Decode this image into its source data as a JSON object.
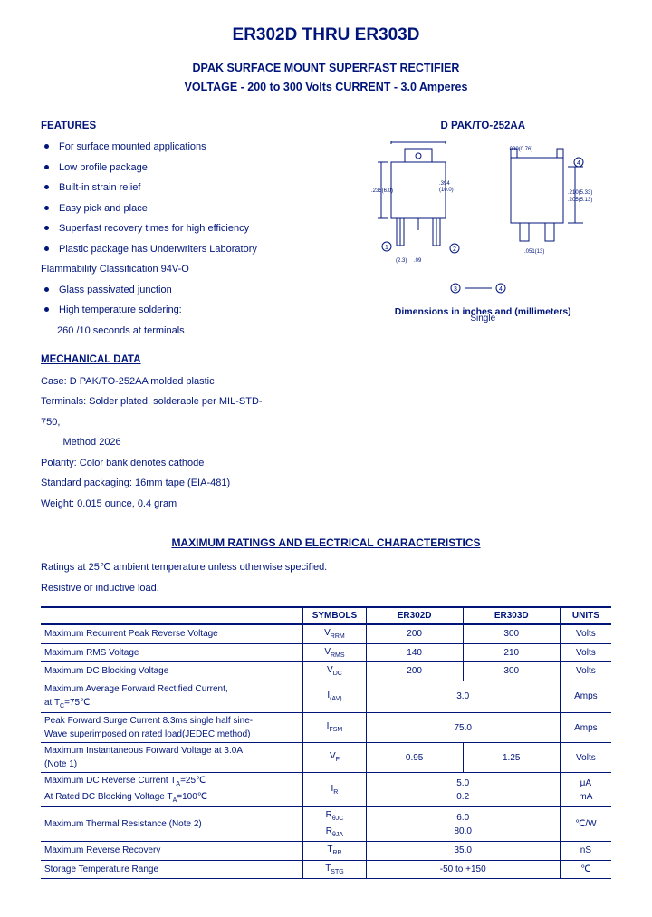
{
  "title": "ER302D THRU ER303D",
  "subtitle1": "DPAK SURFACE MOUNT SUPERFAST RECTIFIER",
  "subtitle2": "VOLTAGE - 200 to 300 Volts  CURRENT - 3.0 Amperes",
  "features_h": "FEATURES",
  "features": [
    "For surface mounted applications",
    "Low profile package",
    "Built-in strain relief",
    "Easy pick and place",
    "Superfast recovery times for high efficiency",
    "Plastic package has Underwriters Laboratory"
  ],
  "flam": "Flammability Classification 94V-O",
  "features2": [
    "Glass passivated junction",
    "High temperature soldering:"
  ],
  "solder": "260 /10 seconds at terminals",
  "mech_h": "MECHANICAL DATA",
  "mech": [
    "Case: D PAK/TO-252AA molded plastic",
    "Terminals: Solder plated, solderable per MIL-STD-",
    "750,",
    "        Method 2026",
    "Polarity: Color bank denotes cathode",
    "Standard packaging: 16mm tape (EIA-481)",
    "Weight: 0.015 ounce, 0.4 gram"
  ],
  "pkg_label": "D PAK/TO-252AA",
  "dims_note": "Dimensions in inches and (millimeters)",
  "single": "Single",
  "max_h": "MAXIMUM RATINGS AND ELECTRICAL CHARACTERISTICS",
  "max_note1": "Ratings at 25℃ ambient temperature unless otherwise specified.",
  "max_note2": "Resistive or inductive load.",
  "table": {
    "head": [
      "",
      "SYMBOLS",
      "ER302D",
      "ER303D",
      "UNITS"
    ],
    "rows": [
      {
        "p": "Maximum Recurrent Peak Reverse Voltage",
        "s": "V",
        "ss": "RRM",
        "v": [
          "200",
          "300"
        ],
        "u": "Volts"
      },
      {
        "p": "Maximum RMS Voltage",
        "s": "V",
        "ss": "RMS",
        "v": [
          "140",
          "210"
        ],
        "u": "Volts"
      },
      {
        "p": "Maximum DC Blocking Voltage",
        "s": "V",
        "ss": "DC",
        "v": [
          "200",
          "300"
        ],
        "u": "Volts"
      },
      {
        "p": "Maximum Average Forward Rectified Current,\nat T<sub>C</sub>=75℃",
        "s": "I",
        "ss": "(AV)",
        "v": [
          "3.0"
        ],
        "u": "Amps"
      },
      {
        "p": "Peak Forward Surge Current 8.3ms single half sine-\nWave superimposed on rated load(JEDEC method)",
        "s": "I",
        "ss": "FSM",
        "v": [
          "75.0"
        ],
        "u": "Amps"
      },
      {
        "p": "Maximum Instantaneous Forward Voltage at 3.0A\n(Note 1)",
        "s": "V",
        "ss": "F",
        "v": [
          "0.95",
          "1.25"
        ],
        "u": "Volts"
      },
      {
        "p": "Maximum DC Reverse Current T<sub>A</sub>=25℃\nAt Rated DC Blocking Voltage T<sub>A</sub>=100℃",
        "s": "I",
        "ss": "R",
        "v": [
          "5.0",
          "0.2"
        ],
        "stack": true,
        "u": "μA\nmA"
      },
      {
        "p": "Maximum Thermal Resistance  (Note 2)",
        "s": "R",
        "ss": "θJC\nθJA",
        "v": [
          "6.0",
          "80.0"
        ],
        "stack": true,
        "u": "℃/W"
      },
      {
        "p": "Maximum Reverse Recovery",
        "s": "T",
        "ss": "RR",
        "v": [
          "35.0"
        ],
        "u": "nS"
      },
      {
        "p": "Storage Temperature Range",
        "s": "T",
        "ss": "STG",
        "v": [
          "-50 to +150"
        ],
        "u": "℃"
      }
    ]
  },
  "colors": {
    "ink": "#00157a"
  }
}
